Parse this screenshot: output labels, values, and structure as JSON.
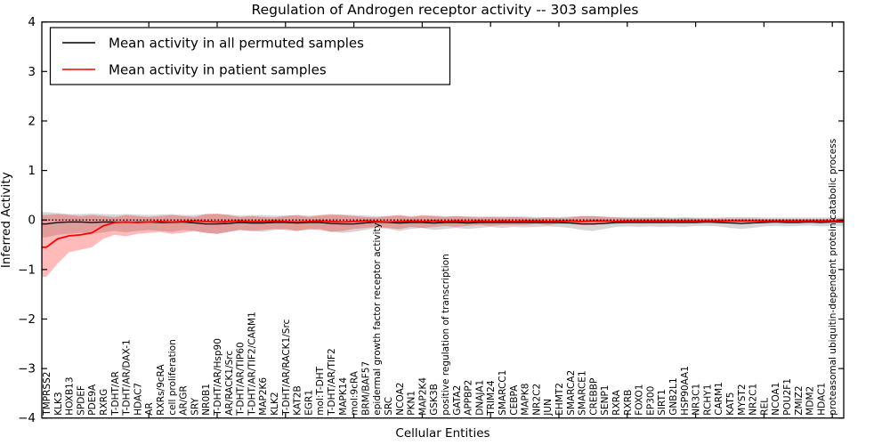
{
  "chart_data": {
    "type": "line",
    "title": "Regulation of Androgen receptor activity -- 303 samples",
    "xlabel": "Cellular Entities",
    "ylabel": "Inferred Activity",
    "ylim": [
      -4,
      4
    ],
    "yticks": [
      4,
      3,
      2,
      1,
      0,
      -1,
      -2,
      -3,
      -4
    ],
    "grid": false,
    "zero_line_style": "dotted",
    "legend_position": "upper-left",
    "x_label_rotation_deg": 90,
    "categories": [
      "TMPRSS2",
      "KLK3",
      "HOXB13",
      "SPDEF",
      "PDE9A",
      "RXRG",
      "T-DHT/AR",
      "T-DHT/AR/DAX-1",
      "HDAC7",
      "AR",
      "RXRs/9cRA",
      "cell proliferation",
      "AR/GR",
      "SRY",
      "NR0B1",
      "T-DHT/AR/Hsp90",
      "AR/RACK1/Src",
      "T-DHT/AR/TIP60",
      "T-DHT/AR/TIF2/CARM1",
      "MAP2K6",
      "KLK2",
      "T-DHT/AR/RACK1/Src",
      "KAT2B",
      "EGR1",
      "mol:T-DHT",
      "T-DHT/AR/TIF2",
      "MAPK14",
      "mol:9cRA",
      "BRM/BAF57",
      "epidermal growth factor receptor activity",
      "SRC",
      "NCOA2",
      "PKN1",
      "MAP2K4",
      "GSK3B",
      "positive regulation of transcription",
      "GATA2",
      "APPBP2",
      "DNAJA1",
      "TRIM24",
      "SMARCC1",
      "CEBPA",
      "MAPK8",
      "NR2C2",
      "JUN",
      "EHMT2",
      "SMARCA2",
      "SMARCE1",
      "CREBBP",
      "SENP1",
      "RXRA",
      "RXRB",
      "FOXO1",
      "EP300",
      "SIRT1",
      "GNB2L1",
      "HSP90AA1",
      "NR3C1",
      "RCHY1",
      "CARM1",
      "KAT5",
      "MYST2",
      "NR2C1",
      "REL",
      "NCOA1",
      "POU2F1",
      "ZMIZ2",
      "MDM2",
      "HDAC1",
      "proteasomal ubiquitin-dependent protein catabolic process"
    ],
    "series": [
      {
        "name": "Mean activity in all permuted samples",
        "color": "#000000",
        "line_width": 1.3,
        "band_color": "#000000",
        "band_opacity": 0.16,
        "values": [
          -0.08,
          -0.05,
          -0.04,
          -0.04,
          -0.05,
          -0.04,
          -0.04,
          -0.05,
          -0.04,
          -0.04,
          -0.05,
          -0.05,
          -0.04,
          -0.06,
          -0.08,
          -0.08,
          -0.07,
          -0.05,
          -0.06,
          -0.06,
          -0.05,
          -0.05,
          -0.06,
          -0.05,
          -0.05,
          -0.07,
          -0.08,
          -0.08,
          -0.06,
          -0.04,
          -0.05,
          -0.06,
          -0.05,
          -0.05,
          -0.06,
          -0.05,
          -0.05,
          -0.06,
          -0.05,
          -0.05,
          -0.05,
          -0.05,
          -0.05,
          -0.05,
          -0.05,
          -0.05,
          -0.06,
          -0.08,
          -0.08,
          -0.07,
          -0.05,
          -0.05,
          -0.05,
          -0.05,
          -0.05,
          -0.05,
          -0.05,
          -0.05,
          -0.04,
          -0.05,
          -0.06,
          -0.07,
          -0.06,
          -0.05,
          -0.04,
          -0.05,
          -0.05,
          -0.04,
          -0.05,
          -0.04
        ],
        "band_upper": [
          0.16,
          0.14,
          0.12,
          0.12,
          0.13,
          0.12,
          0.11,
          0.12,
          0.11,
          0.1,
          0.11,
          0.12,
          0.1,
          0.1,
          0.12,
          0.12,
          0.11,
          0.09,
          0.1,
          0.1,
          0.09,
          0.09,
          0.1,
          0.09,
          0.09,
          0.1,
          0.11,
          0.1,
          0.09,
          0.08,
          0.08,
          0.09,
          0.08,
          0.08,
          0.09,
          0.08,
          0.08,
          0.08,
          0.07,
          0.07,
          0.07,
          0.07,
          0.07,
          0.06,
          0.06,
          0.06,
          0.07,
          0.08,
          0.08,
          0.07,
          0.06,
          0.06,
          0.06,
          0.06,
          0.06,
          0.05,
          0.06,
          0.05,
          0.05,
          0.05,
          0.06,
          0.06,
          0.06,
          0.05,
          0.05,
          0.05,
          0.05,
          0.05,
          0.05,
          0.05
        ],
        "band_lower": [
          -0.35,
          -0.3,
          -0.28,
          -0.26,
          -0.28,
          -0.25,
          -0.22,
          -0.25,
          -0.22,
          -0.2,
          -0.22,
          -0.24,
          -0.2,
          -0.22,
          -0.26,
          -0.28,
          -0.24,
          -0.2,
          -0.22,
          -0.24,
          -0.2,
          -0.18,
          -0.22,
          -0.2,
          -0.18,
          -0.24,
          -0.26,
          -0.24,
          -0.2,
          -0.16,
          -0.18,
          -0.22,
          -0.18,
          -0.16,
          -0.2,
          -0.18,
          -0.16,
          -0.18,
          -0.16,
          -0.14,
          -0.16,
          -0.14,
          -0.15,
          -0.14,
          -0.13,
          -0.14,
          -0.16,
          -0.2,
          -0.22,
          -0.18,
          -0.14,
          -0.13,
          -0.14,
          -0.13,
          -0.14,
          -0.13,
          -0.14,
          -0.12,
          -0.12,
          -0.13,
          -0.16,
          -0.18,
          -0.16,
          -0.13,
          -0.12,
          -0.13,
          -0.12,
          -0.11,
          -0.13,
          -0.12
        ]
      },
      {
        "name": "Mean activity in patient samples",
        "color": "#ff0000",
        "line_width": 1.8,
        "band_color": "#ff0000",
        "band_opacity": 0.27,
        "values": [
          -0.55,
          -0.38,
          -0.32,
          -0.3,
          -0.26,
          -0.12,
          -0.05,
          -0.04,
          -0.05,
          -0.04,
          -0.03,
          -0.04,
          -0.03,
          -0.02,
          -0.03,
          -0.04,
          -0.03,
          -0.02,
          -0.03,
          -0.03,
          -0.02,
          -0.03,
          -0.04,
          -0.03,
          -0.02,
          -0.03,
          -0.04,
          -0.03,
          -0.02,
          -0.03,
          -0.04,
          -0.03,
          -0.02,
          -0.03,
          -0.02,
          -0.03,
          -0.02,
          -0.03,
          -0.02,
          -0.03,
          -0.02,
          -0.03,
          -0.02,
          -0.02,
          -0.03,
          -0.02,
          -0.02,
          -0.03,
          -0.02,
          -0.02,
          -0.03,
          -0.02,
          -0.02,
          -0.02,
          -0.02,
          -0.02,
          -0.02,
          -0.02,
          -0.02,
          -0.02,
          -0.02,
          -0.02,
          -0.02,
          -0.02,
          -0.02,
          -0.02,
          -0.02,
          -0.02,
          -0.02,
          -0.02
        ],
        "band_upper": [
          0.1,
          0.12,
          0.1,
          0.08,
          0.1,
          0.08,
          0.06,
          0.1,
          0.08,
          0.06,
          0.08,
          0.1,
          0.08,
          0.06,
          0.12,
          0.13,
          0.1,
          0.06,
          0.08,
          0.06,
          0.05,
          0.08,
          0.1,
          0.06,
          0.1,
          0.12,
          0.1,
          0.08,
          0.06,
          0.05,
          0.08,
          0.1,
          0.06,
          0.1,
          0.08,
          0.06,
          0.08,
          0.06,
          0.05,
          0.06,
          0.05,
          0.06,
          0.05,
          0.04,
          0.05,
          0.04,
          0.05,
          0.08,
          0.08,
          0.06,
          0.05,
          0.04,
          0.04,
          0.04,
          0.04,
          0.03,
          0.04,
          0.03,
          0.03,
          0.03,
          0.03,
          0.03,
          0.03,
          0.02,
          0.02,
          0.02,
          0.02,
          0.02,
          0.02,
          0.03
        ],
        "band_lower": [
          -1.15,
          -0.88,
          -0.65,
          -0.6,
          -0.55,
          -0.38,
          -0.3,
          -0.33,
          -0.28,
          -0.26,
          -0.24,
          -0.28,
          -0.26,
          -0.22,
          -0.26,
          -0.28,
          -0.24,
          -0.2,
          -0.22,
          -0.2,
          -0.18,
          -0.2,
          -0.22,
          -0.18,
          -0.2,
          -0.24,
          -0.22,
          -0.18,
          -0.16,
          -0.14,
          -0.16,
          -0.18,
          -0.14,
          -0.16,
          -0.14,
          -0.12,
          -0.14,
          -0.12,
          -0.1,
          -0.12,
          -0.1,
          -0.1,
          -0.1,
          -0.08,
          -0.1,
          -0.08,
          -0.08,
          -0.1,
          -0.1,
          -0.08,
          -0.08,
          -0.06,
          -0.06,
          -0.06,
          -0.06,
          -0.05,
          -0.05,
          -0.05,
          -0.05,
          -0.04,
          -0.04,
          -0.04,
          -0.04,
          -0.04,
          -0.04,
          -0.04,
          -0.03,
          -0.03,
          -0.03,
          -0.03
        ]
      }
    ]
  }
}
